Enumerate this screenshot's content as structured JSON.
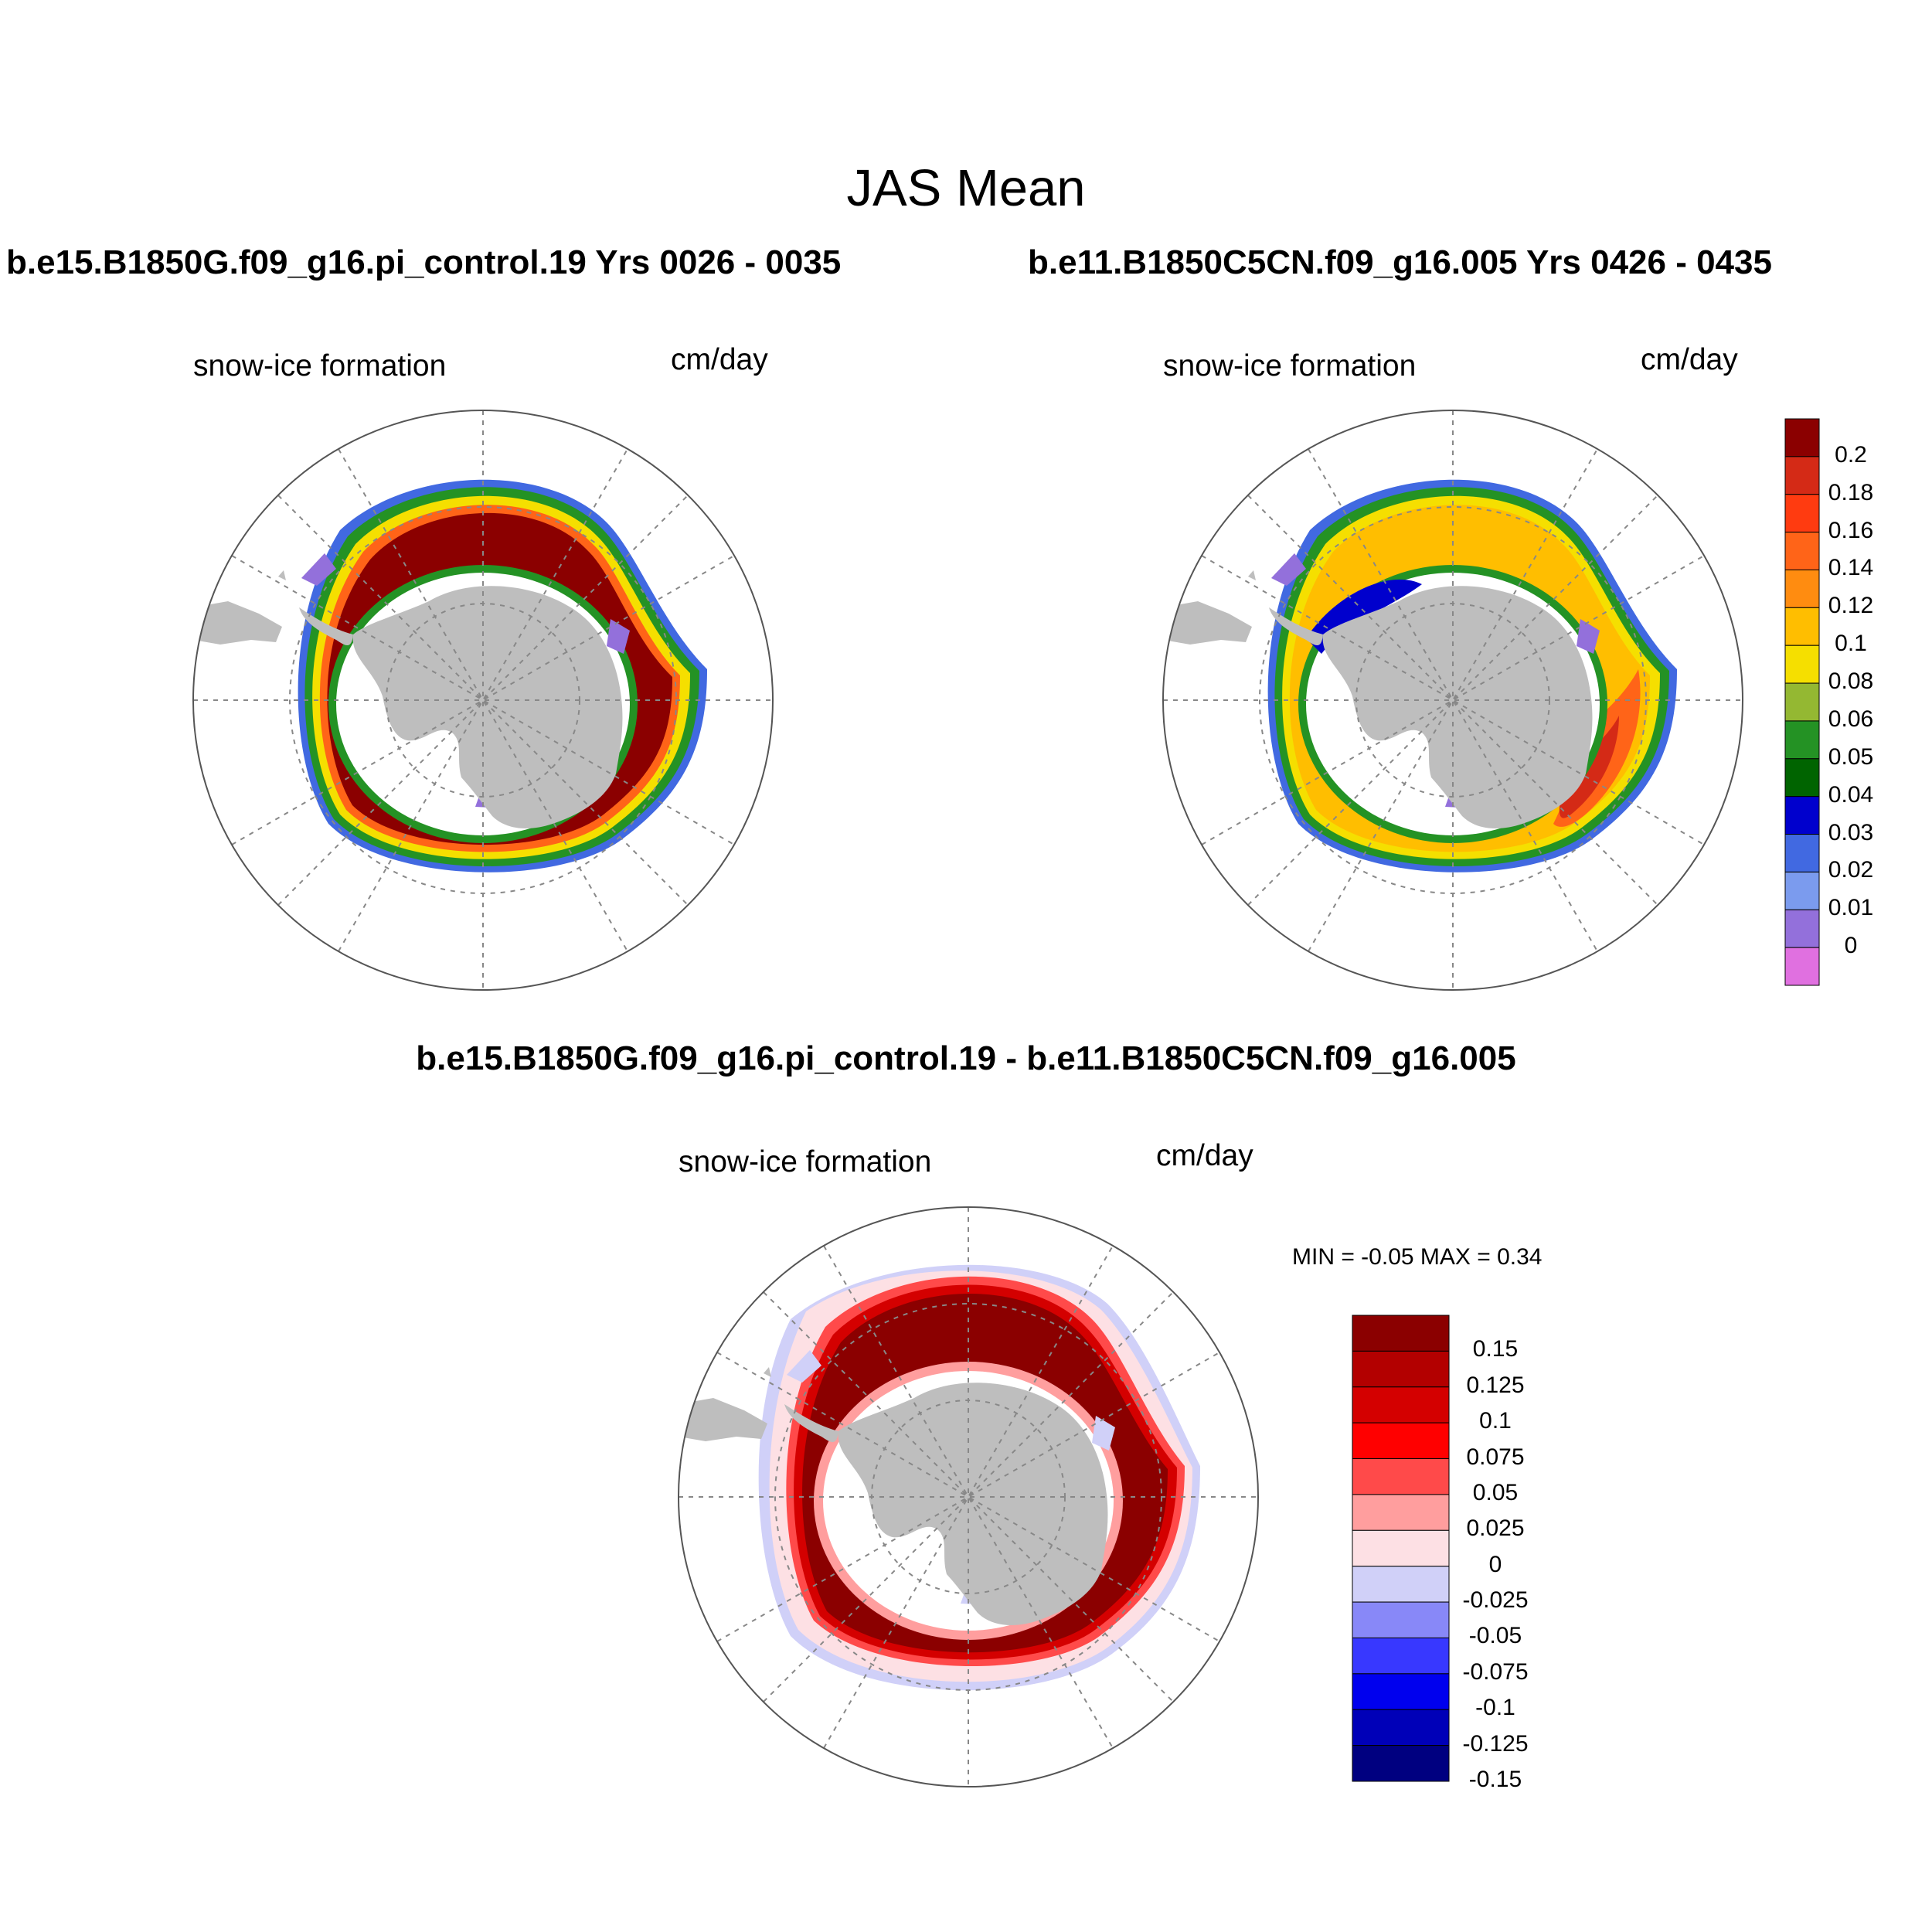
{
  "figure": {
    "title": "JAS Mean",
    "panels": [
      {
        "title": "b.e15.B1850G.f09_g16.pi_control.19  Yrs 0026 - 0035",
        "variable": "snow-ice formation",
        "units": "cm/day",
        "dominant_level": "0.2"
      },
      {
        "title": "b.e11.B1850C5CN.f09_g16.005  Yrs 0426 - 0435",
        "variable": "snow-ice formation",
        "units": "cm/day",
        "dominant_level": "0.1"
      },
      {
        "title": "b.e15.B1850G.f09_g16.pi_control.19 - b.e11.B1850C5CN.f09_g16.005",
        "variable": "snow-ice formation",
        "units": "cm/day",
        "min_max": "MIN =  -0.05 MAX =   0.34",
        "dominant_level": "0.15"
      }
    ]
  },
  "colorbar_main": {
    "labels": [
      "0.2",
      "0.18",
      "0.16",
      "0.14",
      "0.12",
      "0.1",
      "0.08",
      "0.06",
      "0.05",
      "0.04",
      "0.03",
      "0.02",
      "0.01",
      "0"
    ],
    "colors": [
      "#8b0000",
      "#d42a16",
      "#ff3b10",
      "#ff6418",
      "#ff8c10",
      "#ffbe00",
      "#f5df00",
      "#94b832",
      "#249224",
      "#006400",
      "#0000cd",
      "#4169e1",
      "#7b9bee",
      "#9370db",
      "#e070e0"
    ]
  },
  "colorbar_diff": {
    "labels": [
      "0.15",
      "0.125",
      "0.1",
      "0.075",
      "0.05",
      "0.025",
      "0",
      "-0.025",
      "-0.05",
      "-0.075",
      "-0.1",
      "-0.125",
      "-0.15"
    ],
    "colors": [
      "#8b0000",
      "#b30000",
      "#d40000",
      "#ff0000",
      "#ff4a4a",
      "#ff9e9e",
      "#fde0e4",
      "#d0d0f8",
      "#8888f8",
      "#3838ff",
      "#0000ee",
      "#0000b8",
      "#000080"
    ]
  }
}
